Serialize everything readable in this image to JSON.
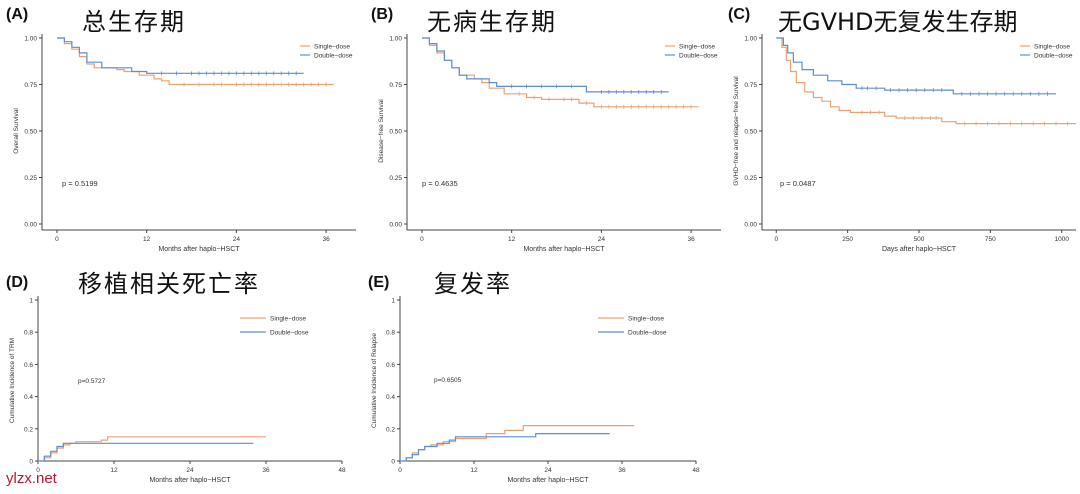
{
  "colors": {
    "single": "#f0a070",
    "double": "#5b8ed6",
    "axis": "#444444",
    "text": "#333333"
  },
  "watermark": "ylzx.net",
  "chart_data": [
    {
      "id": "A",
      "tag": "(A)",
      "title_cn": "总生存期",
      "type": "line",
      "xlabel": "Months after haplo−HSCT",
      "ylabel": "Overall Survival",
      "xlim": [
        -2,
        40
      ],
      "ylim": [
        0,
        1
      ],
      "xticks": [
        {
          "v": 0,
          "label": "0"
        },
        {
          "v": 12,
          "label": "12"
        },
        {
          "v": 24,
          "label": "24"
        },
        {
          "v": 36,
          "label": "36"
        }
      ],
      "yticks": [
        {
          "v": 0,
          "label": "0.00"
        },
        {
          "v": 0.25,
          "label": "0.25"
        },
        {
          "v": 0.5,
          "label": "0.50"
        },
        {
          "v": 0.75,
          "label": "0.75"
        },
        {
          "v": 1,
          "label": "1.00"
        }
      ],
      "legend": [
        "Single−dose",
        "Double−dose"
      ],
      "legend_position": "top-right",
      "pvalue": "p = 0.5199",
      "series": [
        {
          "name": "Single−dose",
          "color": "single",
          "steps": [
            [
              0,
              1
            ],
            [
              1,
              0.97
            ],
            [
              2,
              0.94
            ],
            [
              3,
              0.9
            ],
            [
              4,
              0.86
            ],
            [
              5,
              0.84
            ],
            [
              8,
              0.83
            ],
            [
              9,
              0.82
            ],
            [
              11,
              0.8
            ],
            [
              13,
              0.78
            ],
            [
              14,
              0.77
            ],
            [
              15,
              0.75
            ],
            [
              37,
              0.75
            ]
          ],
          "censor": [
            17,
            19,
            21,
            22,
            24,
            25,
            26,
            27,
            28,
            29,
            30,
            31,
            32,
            33,
            34,
            35,
            36
          ]
        },
        {
          "name": "Double−dose",
          "color": "double",
          "steps": [
            [
              0,
              1
            ],
            [
              1,
              0.98
            ],
            [
              2,
              0.95
            ],
            [
              3,
              0.92
            ],
            [
              4,
              0.87
            ],
            [
              6,
              0.84
            ],
            [
              10,
              0.82
            ],
            [
              12,
              0.81
            ],
            [
              33,
              0.81
            ]
          ],
          "censor": [
            14,
            16,
            18,
            19,
            20,
            21,
            22,
            23,
            24,
            25,
            26,
            27,
            28,
            29,
            30,
            31,
            32
          ]
        }
      ]
    },
    {
      "id": "B",
      "tag": "(B)",
      "title_cn": "无病生存期",
      "type": "line",
      "xlabel": "Months after haplo−HSCT",
      "ylabel": "Disease−free Survival",
      "xlim": [
        -2,
        40
      ],
      "ylim": [
        0,
        1
      ],
      "xticks": [
        {
          "v": 0,
          "label": "0"
        },
        {
          "v": 12,
          "label": "12"
        },
        {
          "v": 24,
          "label": "24"
        },
        {
          "v": 36,
          "label": "36"
        }
      ],
      "yticks": [
        {
          "v": 0,
          "label": "0.00"
        },
        {
          "v": 0.25,
          "label": "0.25"
        },
        {
          "v": 0.5,
          "label": "0.50"
        },
        {
          "v": 0.75,
          "label": "0.75"
        },
        {
          "v": 1,
          "label": "1.00"
        }
      ],
      "legend": [
        "Single−dose",
        "Double−dose"
      ],
      "legend_position": "top-right",
      "pvalue": "p = 0.4635",
      "series": [
        {
          "name": "Single−dose",
          "color": "single",
          "steps": [
            [
              0,
              1
            ],
            [
              1,
              0.96
            ],
            [
              2,
              0.92
            ],
            [
              3,
              0.88
            ],
            [
              4,
              0.84
            ],
            [
              5,
              0.8
            ],
            [
              7,
              0.78
            ],
            [
              8,
              0.76
            ],
            [
              9,
              0.73
            ],
            [
              11,
              0.7
            ],
            [
              14,
              0.68
            ],
            [
              16,
              0.67
            ],
            [
              21,
              0.65
            ],
            [
              23,
              0.63
            ],
            [
              37,
              0.63
            ]
          ],
          "censor": [
            13,
            15,
            17,
            19,
            20,
            22,
            24,
            25,
            26,
            27,
            28,
            29,
            30,
            31,
            32,
            33,
            34,
            35,
            36
          ]
        },
        {
          "name": "Double−dose",
          "color": "double",
          "steps": [
            [
              0,
              1
            ],
            [
              1,
              0.97
            ],
            [
              2,
              0.93
            ],
            [
              3,
              0.88
            ],
            [
              4,
              0.84
            ],
            [
              5,
              0.8
            ],
            [
              6,
              0.78
            ],
            [
              9,
              0.76
            ],
            [
              10,
              0.74
            ],
            [
              21,
              0.74
            ],
            [
              22,
              0.71
            ],
            [
              33,
              0.71
            ]
          ],
          "censor": [
            12,
            14,
            16,
            18,
            20,
            24,
            25,
            26,
            27,
            28,
            29,
            30,
            31,
            32
          ]
        }
      ]
    },
    {
      "id": "C",
      "tag": "(C)",
      "title_cn": "无GVHD无复发生存期",
      "type": "line",
      "xlabel": "Days after haplo−HSCT",
      "ylabel": "GVHD−free and relapse−free Survival",
      "xlim": [
        -50,
        1050
      ],
      "ylim": [
        0,
        1
      ],
      "xticks": [
        {
          "v": 0,
          "label": "0"
        },
        {
          "v": 250,
          "label": "250"
        },
        {
          "v": 500,
          "label": "500"
        },
        {
          "v": 750,
          "label": "750"
        },
        {
          "v": 1000,
          "label": "1000"
        }
      ],
      "yticks": [
        {
          "v": 0,
          "label": "0.00"
        },
        {
          "v": 0.25,
          "label": "0.25"
        },
        {
          "v": 0.5,
          "label": "0.50"
        },
        {
          "v": 0.75,
          "label": "0.75"
        },
        {
          "v": 1,
          "label": "1.00"
        }
      ],
      "legend": [
        "Single−dose",
        "Double−dose"
      ],
      "legend_position": "top-right",
      "pvalue": "p = 0.0487",
      "series": [
        {
          "name": "Single−dose",
          "color": "single",
          "steps": [
            [
              0,
              1
            ],
            [
              20,
              0.95
            ],
            [
              35,
              0.88
            ],
            [
              50,
              0.82
            ],
            [
              70,
              0.76
            ],
            [
              100,
              0.71
            ],
            [
              130,
              0.68
            ],
            [
              160,
              0.66
            ],
            [
              190,
              0.63
            ],
            [
              220,
              0.61
            ],
            [
              260,
              0.6
            ],
            [
              380,
              0.58
            ],
            [
              420,
              0.57
            ],
            [
              580,
              0.55
            ],
            [
              630,
              0.54
            ],
            [
              1050,
              0.54
            ]
          ],
          "censor": [
            300,
            330,
            360,
            450,
            480,
            510,
            540,
            560,
            660,
            700,
            740,
            780,
            820,
            860,
            900,
            940,
            980,
            1020
          ]
        },
        {
          "name": "Double−dose",
          "color": "double",
          "steps": [
            [
              0,
              1
            ],
            [
              25,
              0.96
            ],
            [
              40,
              0.92
            ],
            [
              60,
              0.87
            ],
            [
              90,
              0.83
            ],
            [
              130,
              0.8
            ],
            [
              180,
              0.77
            ],
            [
              230,
              0.75
            ],
            [
              280,
              0.73
            ],
            [
              380,
              0.72
            ],
            [
              620,
              0.7
            ],
            [
              980,
              0.7
            ]
          ],
          "censor": [
            300,
            320,
            350,
            400,
            430,
            460,
            490,
            520,
            550,
            580,
            650,
            680,
            710,
            740,
            770,
            800,
            830,
            860,
            890,
            920,
            950
          ]
        }
      ]
    },
    {
      "id": "D",
      "tag": "(D)",
      "title_cn": "移植相关死亡率",
      "type": "line",
      "xlabel": "Months after haplo−HSCT",
      "ylabel": "Cumulative Incidence of TRM",
      "xlim": [
        0,
        48
      ],
      "ylim": [
        0,
        1
      ],
      "xticks": [
        {
          "v": 0,
          "label": "0"
        },
        {
          "v": 12,
          "label": "12"
        },
        {
          "v": 24,
          "label": "24"
        },
        {
          "v": 36,
          "label": "36"
        },
        {
          "v": 48,
          "label": "48"
        }
      ],
      "yticks": [
        {
          "v": 0,
          "label": "0"
        },
        {
          "v": 0.2,
          "label": "0.2"
        },
        {
          "v": 0.4,
          "label": "0.4"
        },
        {
          "v": 0.6,
          "label": "0.6"
        },
        {
          "v": 0.8,
          "label": "0.8"
        },
        {
          "v": 1,
          "label": "1"
        }
      ],
      "legend": [
        "Single−dose",
        "Double−dose"
      ],
      "legend_position": "top-center",
      "pvalue": "p=0.5727",
      "series": [
        {
          "name": "Single−dose",
          "color": "single",
          "steps": [
            [
              0,
              0
            ],
            [
              1,
              0.02
            ],
            [
              2,
              0.05
            ],
            [
              3,
              0.08
            ],
            [
              4,
              0.1
            ],
            [
              5,
              0.11
            ],
            [
              6,
              0.12
            ],
            [
              10,
              0.13
            ],
            [
              11,
              0.15
            ],
            [
              36,
              0.15
            ]
          ],
          "censor": []
        },
        {
          "name": "Double−dose",
          "color": "double",
          "steps": [
            [
              0,
              0
            ],
            [
              1,
              0.03
            ],
            [
              2,
              0.06
            ],
            [
              3,
              0.09
            ],
            [
              4,
              0.11
            ],
            [
              34,
              0.11
            ]
          ],
          "censor": []
        }
      ]
    },
    {
      "id": "E",
      "tag": "(E)",
      "title_cn": "复发率",
      "type": "line",
      "xlabel": "Months after haplo−HSCT",
      "ylabel": "Cumulative Incidence of Relapse",
      "xlim": [
        0,
        48
      ],
      "ylim": [
        0,
        1
      ],
      "xticks": [
        {
          "v": 0,
          "label": "0"
        },
        {
          "v": 12,
          "label": "12"
        },
        {
          "v": 24,
          "label": "24"
        },
        {
          "v": 36,
          "label": "36"
        },
        {
          "v": 48,
          "label": "48"
        }
      ],
      "yticks": [
        {
          "v": 0,
          "label": "0"
        },
        {
          "v": 0.2,
          "label": "0.2"
        },
        {
          "v": 0.4,
          "label": "0.4"
        },
        {
          "v": 0.6,
          "label": "0.6"
        },
        {
          "v": 0.8,
          "label": "0.8"
        },
        {
          "v": 1,
          "label": "1"
        }
      ],
      "legend": [
        "Single−dose",
        "Double−dose"
      ],
      "legend_position": "top-center",
      "pvalue": "p=0.6505",
      "series": [
        {
          "name": "Single−dose",
          "color": "single",
          "steps": [
            [
              0,
              0
            ],
            [
              1,
              0.02
            ],
            [
              2,
              0.05
            ],
            [
              3,
              0.07
            ],
            [
              4,
              0.09
            ],
            [
              5,
              0.1
            ],
            [
              7,
              0.12
            ],
            [
              9,
              0.14
            ],
            [
              14,
              0.17
            ],
            [
              17,
              0.19
            ],
            [
              20,
              0.22
            ],
            [
              38,
              0.22
            ]
          ],
          "censor": []
        },
        {
          "name": "Double−dose",
          "color": "double",
          "steps": [
            [
              0,
              0
            ],
            [
              1,
              0.02
            ],
            [
              2,
              0.04
            ],
            [
              3,
              0.07
            ],
            [
              4,
              0.09
            ],
            [
              6,
              0.11
            ],
            [
              8,
              0.13
            ],
            [
              9,
              0.15
            ],
            [
              22,
              0.17
            ],
            [
              34,
              0.17
            ]
          ],
          "censor": []
        }
      ]
    }
  ]
}
